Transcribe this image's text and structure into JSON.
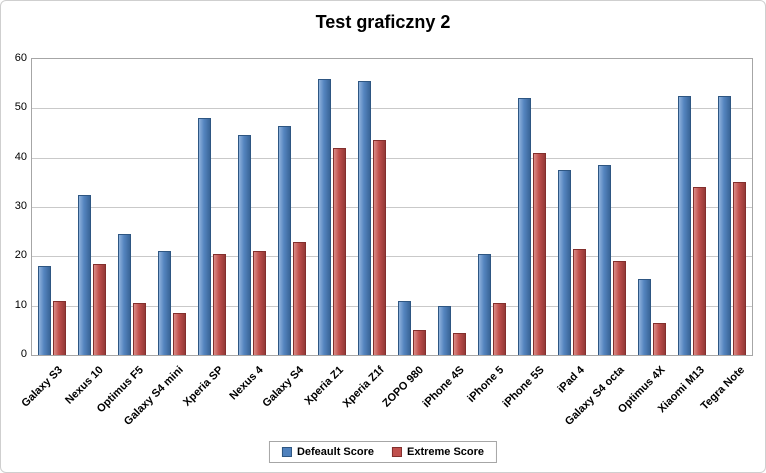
{
  "chart_data": {
    "type": "bar",
    "title": "Test graficzny 2",
    "categories": [
      "Galaxy S3",
      "Nexus 10",
      "Optimus F5",
      "Galaxy S4 mini",
      "Xperia SP",
      "Nexus 4",
      "Galaxy S4",
      "Xperia Z1",
      "Xperia Z1f",
      "ZOPO 980",
      "iPhone 4S",
      "iPhone 5",
      "iPhone 5S",
      "iPad 4",
      "Galaxy S4 octa",
      "Optimus 4X",
      "Xiaomi M13",
      "Tegra Note"
    ],
    "series": [
      {
        "name": "Defeault Score",
        "color": "#4F81BD",
        "border_color": "#2E5682",
        "values": [
          18,
          32.5,
          24.5,
          21,
          48,
          44.5,
          46.5,
          56,
          55.5,
          11,
          10,
          20.5,
          52,
          37.5,
          38.5,
          15.5,
          52.5,
          52.5
        ]
      },
      {
        "name": "Extreme Score",
        "color": "#C0504D",
        "border_color": "#832F2D",
        "values": [
          11,
          18.5,
          10.5,
          8.5,
          20.5,
          21,
          23,
          42,
          43.5,
          5,
          4.5,
          10.5,
          41,
          21.5,
          19,
          6.5,
          34,
          35
        ]
      }
    ],
    "ylim": [
      0,
      60
    ],
    "ytick_step": 10,
    "grid": true,
    "legend_position": "bottom",
    "gridline_color": "#C9C9C9",
    "plot_border_color": "#A6A6A6"
  }
}
